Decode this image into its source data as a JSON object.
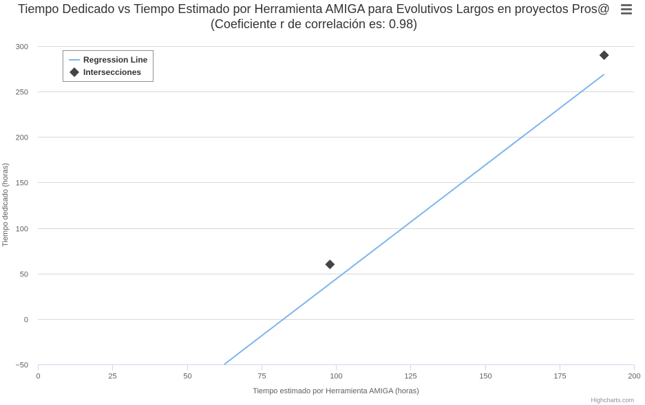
{
  "chart_data": {
    "type": "scatter",
    "title": "Tiempo Dedicado vs Tiempo Estimado por Herramienta AMIGA para Evolutivos Largos en proyectos Pros@ (Coeficiente r de correlación es: 0.98)",
    "xlabel": "Tiempo estimado por Herramienta AMIGA (horas)",
    "ylabel": "Tiempo dedicado (horas)",
    "xlim": [
      0,
      200
    ],
    "ylim": [
      -50,
      300
    ],
    "xticks": [
      0,
      25,
      50,
      75,
      100,
      125,
      150,
      175,
      200
    ],
    "yticks": [
      -50,
      0,
      50,
      100,
      150,
      200,
      250,
      300
    ],
    "grid": "horizontal",
    "legend_position": "top-left",
    "series": [
      {
        "name": "Regression Line",
        "kind": "line",
        "color": "#7cb5ec",
        "x": [
          62.5,
          190
        ],
        "y": [
          -50,
          269
        ]
      },
      {
        "name": "Intersecciones",
        "kind": "scatter",
        "marker": "diamond",
        "color": "#434348",
        "x": [
          98,
          190
        ],
        "y": [
          60,
          290
        ]
      }
    ]
  },
  "menu": {
    "icon": "hamburger-menu-icon"
  },
  "credits": "Highcharts.com"
}
